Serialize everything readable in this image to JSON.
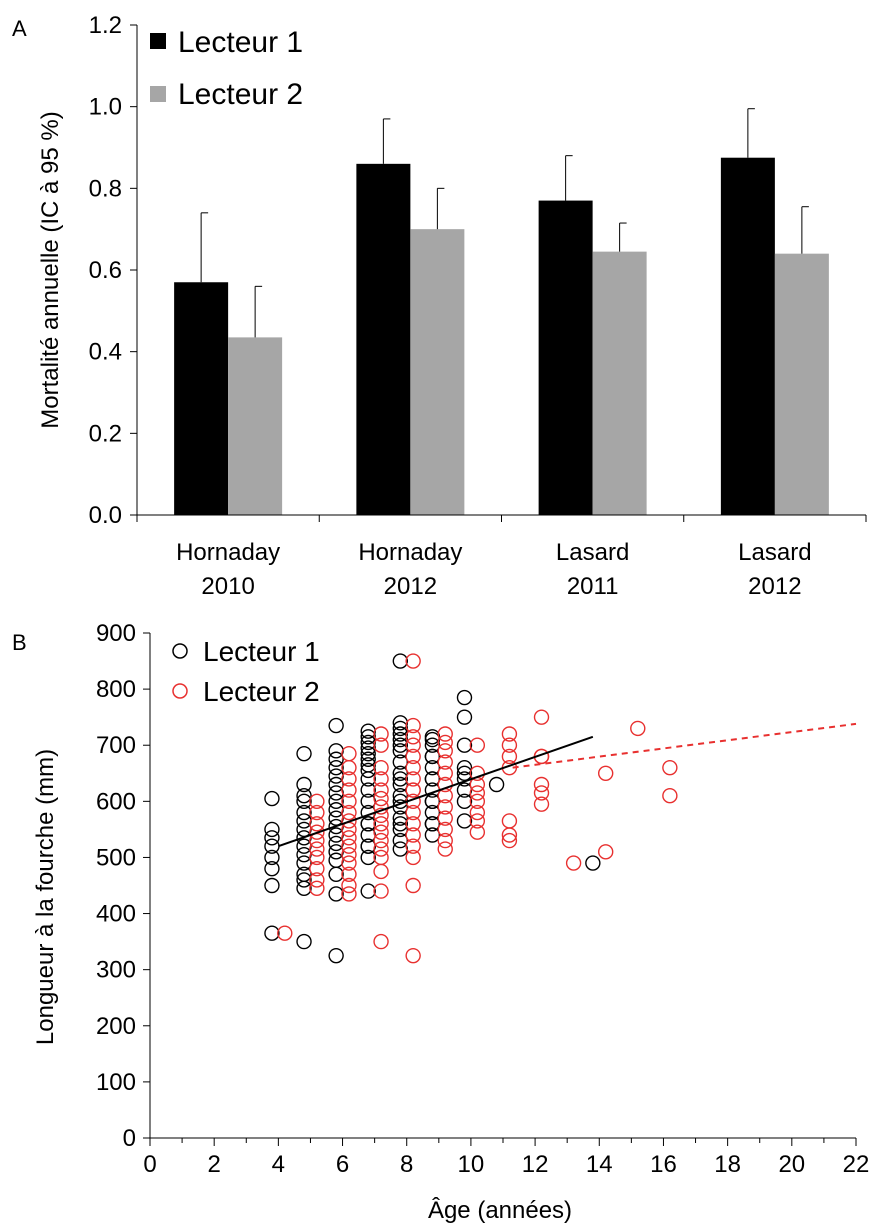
{
  "chart_data": [
    {
      "panel_label": "A",
      "type": "bar",
      "ylabel": "Mortalité annuelle (IC à 95 %)",
      "ylim": [
        0,
        1.2
      ],
      "yticks": [
        "0.0",
        "0.2",
        "0.4",
        "0.6",
        "0.8",
        "1.0",
        "1.2"
      ],
      "categories": [
        [
          "Hornaday",
          "2010"
        ],
        [
          "Hornaday",
          "2012"
        ],
        [
          "Lasard",
          "2011"
        ],
        [
          "Lasard",
          "2012"
        ]
      ],
      "legend_position": "top-left",
      "series": [
        {
          "name": "Lecteur 1",
          "color": "#000000",
          "values": [
            0.57,
            0.86,
            0.77,
            0.875
          ],
          "ci_upper": [
            0.74,
            0.97,
            0.88,
            0.995
          ]
        },
        {
          "name": "Lecteur 2",
          "color": "#a6a6a6",
          "values": [
            0.435,
            0.7,
            0.645,
            0.64
          ],
          "ci_upper": [
            0.56,
            0.8,
            0.715,
            0.755
          ]
        }
      ]
    },
    {
      "panel_label": "B",
      "type": "scatter",
      "xlabel": "Âge (années)",
      "ylabel": "Longueur à la fourche (mm)",
      "xlim": [
        0,
        22
      ],
      "ylim": [
        0,
        900
      ],
      "xticks": [
        "0",
        "2",
        "4",
        "6",
        "8",
        "10",
        "12",
        "14",
        "16",
        "18",
        "20",
        "22"
      ],
      "yticks": [
        "0",
        "100",
        "200",
        "300",
        "400",
        "500",
        "600",
        "700",
        "800",
        "900"
      ],
      "legend_position": "top-left",
      "series": [
        {
          "name": "Lecteur 1",
          "color": "#000000",
          "x": [
            3.8,
            3.8,
            3.8,
            3.8,
            3.8,
            3.8,
            3.8,
            3.8,
            4.8,
            4.8,
            4.8,
            4.8,
            4.8,
            4.8,
            4.8,
            4.8,
            4.8,
            4.8,
            4.8,
            4.8,
            4.8,
            4.8,
            4.8,
            5.8,
            5.8,
            5.8,
            5.8,
            5.8,
            5.8,
            5.8,
            5.8,
            5.8,
            5.8,
            5.8,
            5.8,
            5.8,
            5.8,
            5.8,
            5.8,
            5.8,
            5.8,
            6.8,
            6.8,
            6.8,
            6.8,
            6.8,
            6.8,
            6.8,
            6.8,
            6.8,
            6.8,
            6.8,
            6.8,
            6.8,
            6.8,
            6.8,
            6.8,
            6.8,
            6.8,
            6.8,
            7.8,
            7.8,
            7.8,
            7.8,
            7.8,
            7.8,
            7.8,
            7.8,
            7.8,
            7.8,
            7.8,
            7.8,
            7.8,
            7.8,
            7.8,
            7.8,
            7.8,
            7.8,
            7.8,
            8.8,
            8.8,
            8.8,
            8.8,
            8.8,
            8.8,
            8.8,
            8.8,
            8.8,
            8.8,
            8.8,
            8.8,
            8.8,
            8.8,
            8.8,
            9.8,
            9.8,
            9.8,
            9.8,
            9.8,
            9.8,
            9.8,
            9.8,
            9.8,
            10.8,
            13.8
          ],
          "y": [
            365,
            450,
            480,
            500,
            520,
            535,
            550,
            605,
            350,
            445,
            460,
            470,
            490,
            505,
            520,
            535,
            550,
            565,
            580,
            600,
            610,
            630,
            685,
            325,
            435,
            470,
            495,
            510,
            525,
            540,
            555,
            570,
            585,
            600,
            615,
            630,
            645,
            660,
            675,
            690,
            735,
            440,
            500,
            520,
            540,
            560,
            580,
            600,
            620,
            640,
            655,
            665,
            675,
            685,
            695,
            705,
            715,
            725,
            520,
            560,
            515,
            530,
            550,
            570,
            590,
            610,
            630,
            650,
            670,
            690,
            700,
            710,
            720,
            730,
            740,
            850,
            560,
            600,
            640,
            540,
            560,
            580,
            600,
            620,
            640,
            660,
            680,
            700,
            710,
            715,
            560,
            600,
            640,
            680,
            565,
            600,
            620,
            640,
            650,
            660,
            700,
            750,
            785,
            630,
            490
          ]
        },
        {
          "name": "Lecteur 2",
          "color": "#e8302f",
          "x": [
            4.2,
            5.2,
            5.2,
            5.2,
            5.2,
            5.2,
            5.2,
            5.2,
            5.2,
            5.2,
            5.2,
            6.2,
            6.2,
            6.2,
            6.2,
            6.2,
            6.2,
            6.2,
            6.2,
            6.2,
            6.2,
            6.2,
            6.2,
            6.2,
            6.2,
            6.2,
            7.2,
            7.2,
            7.2,
            7.2,
            7.2,
            7.2,
            7.2,
            7.2,
            7.2,
            7.2,
            7.2,
            7.2,
            7.2,
            7.2,
            7.2,
            7.2,
            8.2,
            8.2,
            8.2,
            8.2,
            8.2,
            8.2,
            8.2,
            8.2,
            8.2,
            8.2,
            8.2,
            8.2,
            8.2,
            8.2,
            8.2,
            8.2,
            8.2,
            9.2,
            9.2,
            9.2,
            9.2,
            9.2,
            9.2,
            9.2,
            9.2,
            9.2,
            9.2,
            9.2,
            9.2,
            10.2,
            10.2,
            10.2,
            10.2,
            10.2,
            10.2,
            10.2,
            10.2,
            11.2,
            11.2,
            11.2,
            11.2,
            11.2,
            11.2,
            11.2,
            12.2,
            12.2,
            12.2,
            12.2,
            12.2,
            12.2,
            13.2,
            14.2,
            14.2,
            15.2,
            16.2,
            16.2
          ],
          "y": [
            365,
            445,
            460,
            480,
            500,
            515,
            530,
            545,
            560,
            580,
            600,
            435,
            450,
            470,
            490,
            505,
            520,
            535,
            550,
            565,
            580,
            600,
            620,
            640,
            660,
            685,
            350,
            440,
            475,
            500,
            515,
            530,
            545,
            560,
            575,
            590,
            605,
            620,
            640,
            660,
            700,
            720,
            325,
            450,
            500,
            520,
            540,
            560,
            580,
            600,
            620,
            640,
            660,
            680,
            700,
            715,
            735,
            850,
            620,
            515,
            530,
            550,
            570,
            590,
            610,
            630,
            650,
            670,
            690,
            705,
            720,
            545,
            565,
            580,
            600,
            615,
            630,
            650,
            700,
            530,
            540,
            565,
            660,
            680,
            700,
            720,
            595,
            615,
            630,
            680,
            750,
            680,
            490,
            510,
            650,
            730,
            610,
            660
          ]
        }
      ],
      "trendlines": [
        {
          "series": "Lecteur 1",
          "style": "solid",
          "color": "#000000",
          "x_range": [
            4,
            13.8
          ],
          "y_start": 520,
          "y_end": 715
        },
        {
          "series": "Lecteur 2",
          "style": "dashed",
          "color": "#e8302f",
          "x_range": [
            11.3,
            22
          ],
          "y_start": 660,
          "y_end": 738
        }
      ]
    }
  ]
}
